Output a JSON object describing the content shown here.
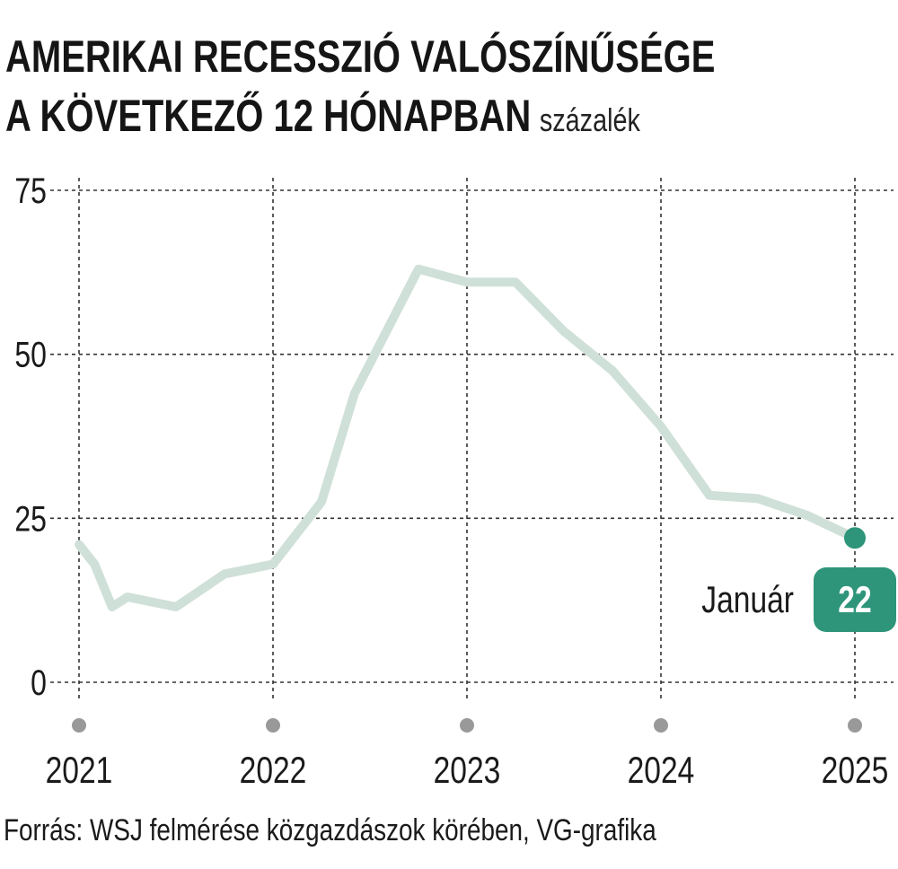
{
  "title": {
    "line1": "AMERIKAI RECESSZIÓ VALÓSZÍNŰSÉGE",
    "line2": "A KÖVETKEZŐ 12 HÓNAPBAN",
    "unit": "százalék"
  },
  "source": "Forrás: WSJ felmérése közgazdászok körében, VG-grafika",
  "colors": {
    "line": "#cfe0d8",
    "accent": "#2e957a",
    "grid": "#333333",
    "year_dot": "#999999"
  },
  "chart_data": {
    "type": "line",
    "title": "AMERIKAI RECESSZIÓ VALÓSZÍNŰSÉGE A KÖVETKEZŐ 12 HÓNAPBAN",
    "ylabel": "százalék",
    "xlabel": "",
    "xlim": [
      2021,
      2025
    ],
    "ylim": [
      0,
      75
    ],
    "yticks": [
      0,
      25,
      50,
      75
    ],
    "xticks": [
      "2021",
      "2022",
      "2023",
      "2024",
      "2025"
    ],
    "grid": true,
    "series": [
      {
        "x": [
          2021.0,
          2021.08,
          2021.17,
          2021.25,
          2021.5,
          2021.75,
          2022.0,
          2022.25,
          2022.42,
          2022.75,
          2023.0,
          2023.25,
          2023.5,
          2023.75,
          2024.0,
          2024.25,
          2024.5,
          2024.75,
          2025.0
        ],
        "y": [
          21,
          18,
          11.5,
          13,
          11.5,
          16.5,
          18,
          27.5,
          44,
          63,
          61,
          61,
          53.5,
          47.5,
          39,
          28.5,
          28,
          25.5,
          22
        ]
      }
    ],
    "annotation": {
      "label": "Január",
      "value": "22",
      "x": 2025.0,
      "y": 22
    }
  }
}
